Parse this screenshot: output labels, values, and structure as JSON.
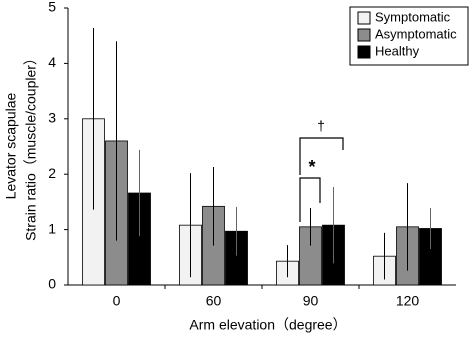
{
  "chart_data": {
    "type": "bar",
    "y_label": [
      "Levator scapulae",
      "Strain ratio（muscle/coupler）"
    ],
    "x_label": "Arm elevation（degree）",
    "categories": [
      "0",
      "60",
      "90",
      "120"
    ],
    "series": [
      {
        "name": "Symptomatic",
        "color": "#f2f2f2",
        "values": [
          3.0,
          1.08,
          0.43,
          0.52
        ],
        "errors": [
          1.64,
          0.94,
          0.29,
          0.42
        ]
      },
      {
        "name": "Asymptomatic",
        "color": "#8c8c8c",
        "values": [
          2.6,
          1.42,
          1.05,
          1.05
        ],
        "errors": [
          1.8,
          0.71,
          0.34,
          0.79
        ]
      },
      {
        "name": "Healthy",
        "color": "#000000",
        "values": [
          1.66,
          0.97,
          1.08,
          1.02
        ],
        "errors": [
          0.78,
          0.44,
          0.69,
          0.37
        ]
      }
    ],
    "annotations": [
      "†",
      "*"
    ],
    "ylim": [
      0,
      5
    ],
    "yticks": [
      0,
      1,
      2,
      3,
      4,
      5
    ],
    "legend": "upper right"
  }
}
